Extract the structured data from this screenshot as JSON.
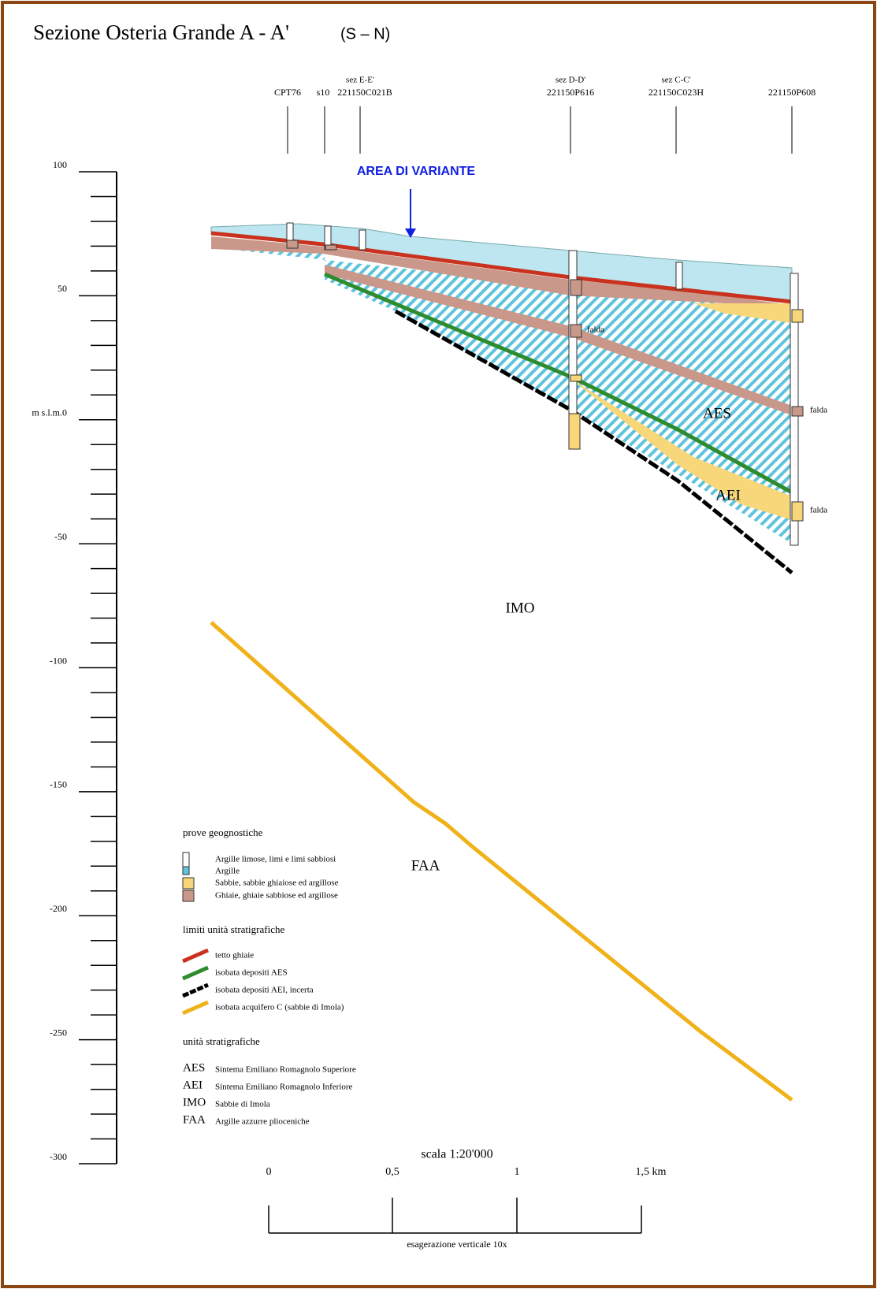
{
  "header": {
    "title": "Sezione Osteria Grande A - A'",
    "orientation": "(S – N)"
  },
  "elevation_axis": {
    "labels": [
      "100",
      "50",
      "m s.l.m.0",
      "-50",
      "-100",
      "-150",
      "-200",
      "-250",
      "-300"
    ]
  },
  "boreholes": [
    {
      "id": "CPT76"
    },
    {
      "id": "s10"
    },
    {
      "section": "sez E-E'",
      "id": "221150C021B"
    },
    {
      "section": "sez D-D'",
      "id": "221150P616"
    },
    {
      "section": "sez C-C'",
      "id": "221150C023H"
    },
    {
      "id": "221150P608"
    }
  ],
  "annotations": {
    "area": "AREA DI VARIANTE",
    "units": [
      "AES",
      "AEI",
      "IMO",
      "FAA"
    ],
    "water_table": [
      "falda",
      "falda",
      "falda"
    ]
  },
  "legend": {
    "tests": {
      "title": "prove geognostiche",
      "items": [
        "Argille limose, limi e limi sabbiosi",
        "Argille",
        "Sabbie, sabbie ghiaiose ed argillose",
        "Ghiaie, ghiaie sabbiose ed argillose"
      ]
    },
    "limits": {
      "title": "limiti unità stratigrafiche",
      "items": [
        "tetto ghiaie",
        "isobata depositi AES",
        "isobata depositi AEI, incerta",
        "isobata acquifero C (sabbie di Imola)"
      ]
    },
    "units": {
      "title": "unità stratigrafiche",
      "items": [
        {
          "code": "AES",
          "name": "Sintema Emiliano Romagnolo Superiore"
        },
        {
          "code": "AEI",
          "name": "Sintema Emiliano Romagnolo Inferiore"
        },
        {
          "code": "IMO",
          "name": "Sabbie di Imola"
        },
        {
          "code": "FAA",
          "name": "Argille azzurre plioceniche"
        }
      ]
    }
  },
  "scale": {
    "title": "scala 1:20'000",
    "labels": [
      "0",
      "0,5",
      "1",
      "1,5 km"
    ],
    "note": "esagerazione verticale 10x"
  }
}
